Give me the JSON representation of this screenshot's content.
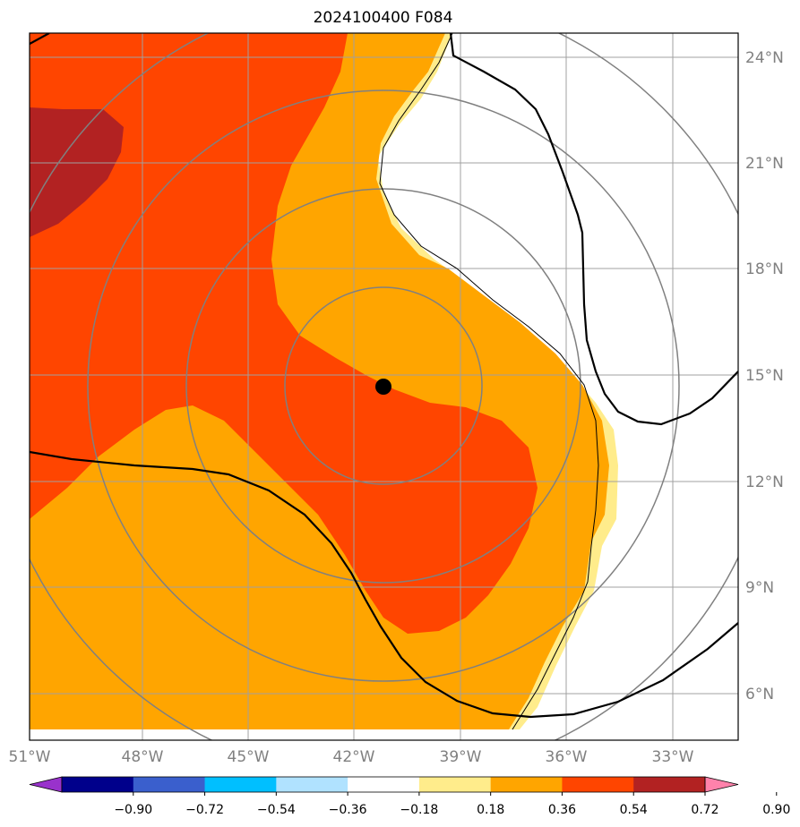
{
  "title": "2024100400 F084",
  "longitude_labels": [
    "51°W",
    "48°W",
    "45°W",
    "42°W",
    "39°W",
    "36°W",
    "33°W"
  ],
  "latitude_labels": [
    "24°N",
    "21°N",
    "18°N",
    "15°N",
    "12°N",
    "9°N",
    "6°N"
  ],
  "map_extent": {
    "lon_min": -51,
    "lon_max": -31,
    "lat_min": 5,
    "lat_max": 25
  },
  "storm_center": {
    "lon": -41,
    "lat": 14.7
  },
  "range_rings_deg": [
    2.8,
    5.5,
    8.3,
    11
  ],
  "colorbar": {
    "tick_labels": [
      "−0.90",
      "−0.72",
      "−0.54",
      "−0.36",
      "−0.18",
      "0.18",
      "0.36",
      "0.54",
      "0.72",
      "0.90"
    ],
    "colors": [
      "#9932cc",
      "#00008b",
      "#3a5fcd",
      "#00bfff",
      "#b0e2ff",
      "#ffffff",
      "#ffec8b",
      "#ffa500",
      "#ff4500",
      "#b22222",
      "#ff82ab"
    ]
  }
}
